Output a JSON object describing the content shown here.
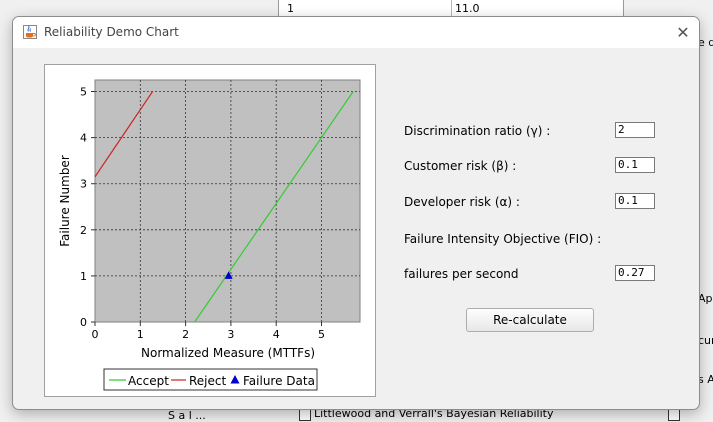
{
  "background": {
    "table_row": {
      "col1": "1",
      "col2": "11.0"
    },
    "fragments": {
      "right_top": "e d",
      "right_app": "App",
      "right_cura": "cura",
      "right_sa": "s A",
      "bottom_mid": "Littlewood and Verrall's Bayesian Reliability",
      "bottom_left": "S a l ..."
    }
  },
  "dialog": {
    "title": "Reliability Demo Chart",
    "close_glyph": "✕"
  },
  "form": {
    "discrimination_label": "Discrimination ratio (γ) :",
    "discrimination_value": "2",
    "customer_risk_label": "Customer risk (β) :",
    "customer_risk_value": "0.1",
    "developer_risk_label": "Developer risk (α) :",
    "developer_risk_value": "0.1",
    "fio_label": "Failure Intensity Objective (FIO) :",
    "fps_label": "failures per second",
    "fps_value": "0.27",
    "recalc_label": "Re-calculate"
  },
  "chart_data": {
    "type": "line",
    "xlabel": "Normalized Measure (MTTFs)",
    "ylabel": "Failure Number",
    "xlim": [
      0,
      5.85
    ],
    "ylim": [
      0,
      5.25
    ],
    "xticks": [
      0,
      1,
      2,
      3,
      4,
      5
    ],
    "yticks": [
      0,
      1,
      2,
      3,
      4,
      5
    ],
    "grid": true,
    "legend_position": "bottom",
    "series": [
      {
        "name": "Accept",
        "kind": "line",
        "color": "#33cc33",
        "points": [
          [
            2.2,
            0
          ],
          [
            5.7,
            5
          ]
        ]
      },
      {
        "name": "Reject",
        "kind": "line",
        "color": "#cc2222",
        "points": [
          [
            0,
            3.15
          ],
          [
            1.27,
            5
          ]
        ]
      },
      {
        "name": "Failure Data",
        "kind": "marker",
        "color": "#0000cc",
        "points": [
          [
            2.95,
            1
          ]
        ]
      }
    ]
  }
}
